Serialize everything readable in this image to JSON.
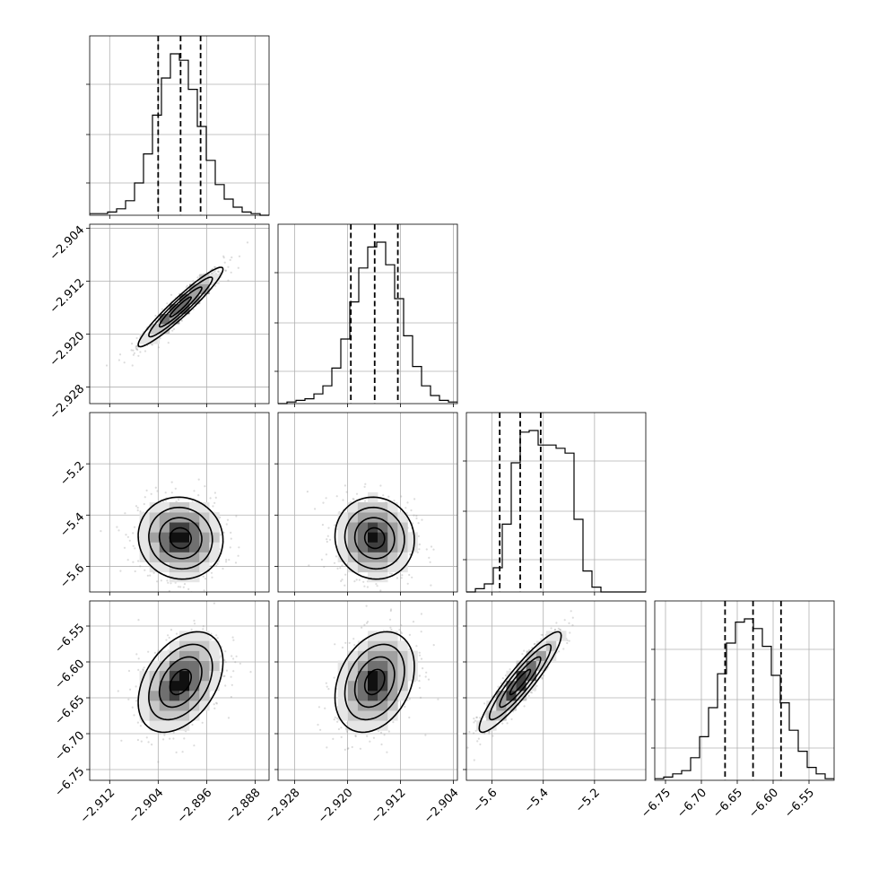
{
  "chart_data": {
    "type": "corner",
    "parameters": [
      {
        "range": [
          -2.9153,
          -2.8857
        ],
        "mean": -2.9003,
        "sd": 0.0035,
        "quantiles": [
          -2.904,
          -2.9003,
          -2.897
        ],
        "ticks": [
          -2.912,
          -2.904,
          -2.896,
          -2.888
        ],
        "tick_labels": [
          "−2.912",
          "−2.904",
          "−2.896",
          "−2.888"
        ]
      },
      {
        "range": [
          -2.9305,
          -2.9034
        ],
        "mean": -2.9159,
        "sd": 0.003,
        "quantiles": [
          -2.9195,
          -2.9159,
          -2.9124
        ],
        "ticks": [
          -2.928,
          -2.92,
          -2.912,
          -2.904
        ],
        "tick_labels": [
          "−2.928",
          "−2.920",
          "−2.912",
          "−2.904"
        ]
      },
      {
        "range": [
          -5.7,
          -5.0
        ],
        "mean": -5.49,
        "sd": 0.08,
        "quantiles": [
          -5.57,
          -5.49,
          -5.41
        ],
        "ticks": [
          -5.6,
          -5.4,
          -5.2
        ],
        "tick_labels": [
          "−5.6",
          "−5.4",
          "−5.2"
        ]
      },
      {
        "range": [
          -6.765,
          -6.515
        ],
        "mean": -6.628,
        "sd": 0.035,
        "quantiles": [
          -6.667,
          -6.628,
          -6.589
        ],
        "ticks": [
          -6.75,
          -6.7,
          -6.65,
          -6.6,
          -6.55
        ],
        "tick_labels": [
          "−6.75",
          "−6.70",
          "−6.65",
          "−6.60",
          "−6.55"
        ]
      }
    ],
    "diagonal_histograms": [
      {
        "bins": 20,
        "counts": [
          0.01,
          0.01,
          0.02,
          0.04,
          0.09,
          0.2,
          0.38,
          0.62,
          0.85,
          1.0,
          0.96,
          0.78,
          0.55,
          0.34,
          0.19,
          0.1,
          0.05,
          0.02,
          0.01,
          0.0
        ]
      },
      {
        "bins": 20,
        "counts": [
          0.0,
          0.01,
          0.02,
          0.03,
          0.06,
          0.11,
          0.22,
          0.4,
          0.63,
          0.84,
          0.97,
          1.0,
          0.86,
          0.65,
          0.42,
          0.23,
          0.11,
          0.05,
          0.02,
          0.01
        ]
      },
      {
        "bins": 20,
        "counts": [
          0.0,
          0.02,
          0.05,
          0.15,
          0.42,
          0.8,
          0.99,
          1.0,
          0.91,
          0.91,
          0.89,
          0.86,
          0.45,
          0.13,
          0.03,
          0.0,
          0.0,
          0.0,
          0.0,
          0.0
        ]
      },
      {
        "bins": 20,
        "counts": [
          0.01,
          0.02,
          0.04,
          0.06,
          0.14,
          0.27,
          0.45,
          0.66,
          0.85,
          0.98,
          1.0,
          0.94,
          0.83,
          0.65,
          0.48,
          0.31,
          0.18,
          0.08,
          0.04,
          0.01
        ]
      }
    ],
    "pair_correlations": [
      {
        "row": 1,
        "col": 0,
        "rho": 0.95
      },
      {
        "row": 2,
        "col": 0,
        "rho": -0.05
      },
      {
        "row": 2,
        "col": 1,
        "rho": -0.05
      },
      {
        "row": 3,
        "col": 0,
        "rho": 0.4
      },
      {
        "row": 3,
        "col": 1,
        "rho": 0.3
      },
      {
        "row": 3,
        "col": 2,
        "rho": 0.92
      }
    ],
    "contour_levels_sigma": [
      0.5,
      1.0,
      1.5,
      2.0
    ],
    "grid": true,
    "colors": {
      "scatter": "#9a9a9a",
      "contour": "#000000",
      "histogram": "#000000",
      "grid": "#b0b0b0"
    }
  }
}
